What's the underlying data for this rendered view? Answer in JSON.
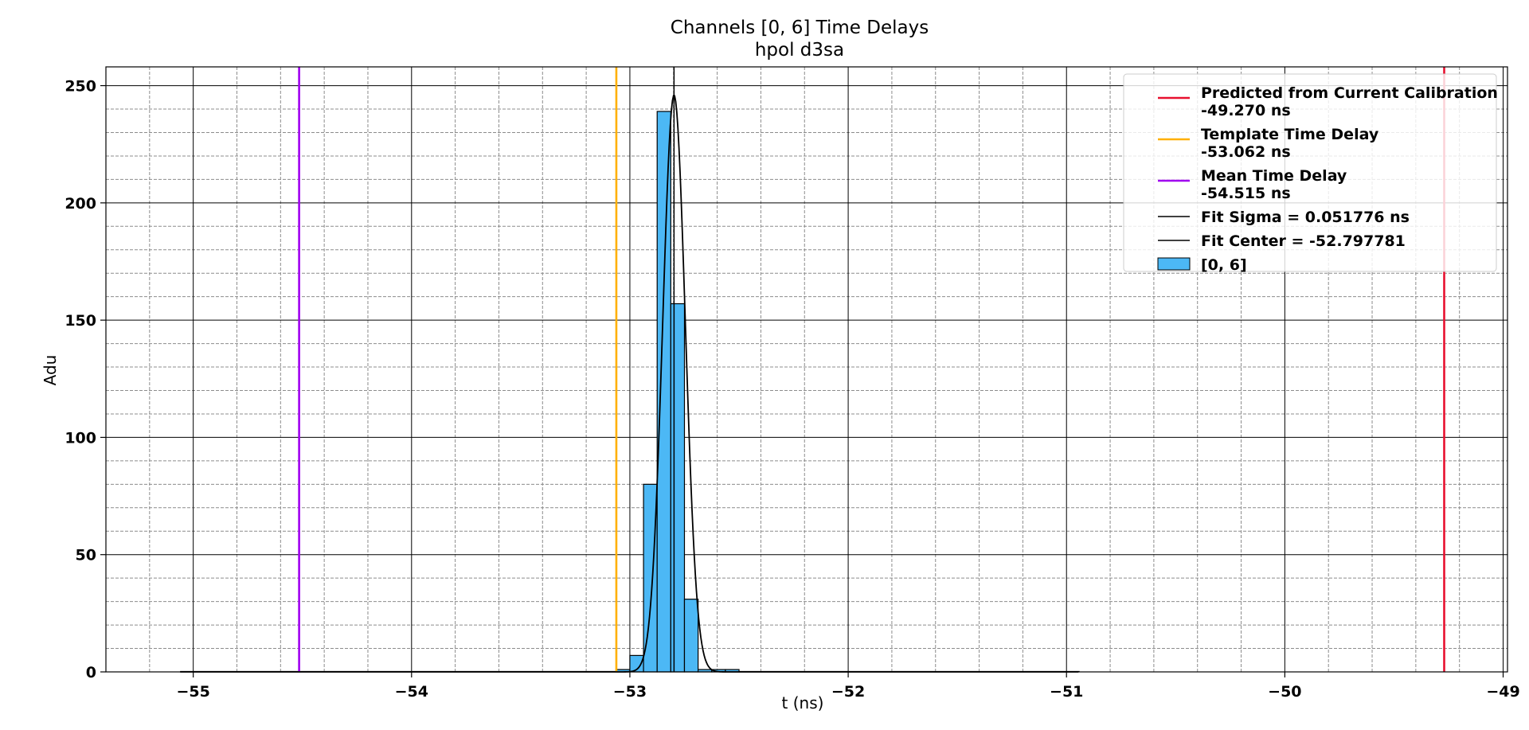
{
  "chart_data": {
    "type": "bar",
    "title": "Channels [0, 6] Time Delays",
    "subtitle": "hpol d3sa",
    "xlabel": "t (ns)",
    "ylabel": "Adu",
    "xlim": [
      -55.4,
      -48.98
    ],
    "ylim": [
      0,
      258
    ],
    "xticks": [
      -55,
      -54,
      -53,
      -52,
      -51,
      -50,
      -49
    ],
    "xtick_labels": [
      "−55",
      "−54",
      "−53",
      "−52",
      "−51",
      "−50",
      "−49"
    ],
    "yticks": [
      0,
      50,
      100,
      150,
      200,
      250
    ],
    "ytick_labels": [
      "0",
      "50",
      "100",
      "150",
      "200",
      "250"
    ],
    "grid": "major solid, minor dashed",
    "legend_position": "top-right",
    "histogram": {
      "name": "[0, 6]",
      "color": "#4cb8f5",
      "edgecolor": "#000000",
      "range": [
        -55.06,
        -50.94
      ],
      "bin_width": 0.0625,
      "bins": [
        {
          "x0": -53.0625,
          "x1": -53.0,
          "count": 1
        },
        {
          "x0": -53.0,
          "x1": -52.9375,
          "count": 7
        },
        {
          "x0": -52.9375,
          "x1": -52.875,
          "count": 80
        },
        {
          "x0": -52.875,
          "x1": -52.8125,
          "count": 239
        },
        {
          "x0": -52.8125,
          "x1": -52.75,
          "count": 157
        },
        {
          "x0": -52.75,
          "x1": -52.6875,
          "count": 31
        },
        {
          "x0": -52.6875,
          "x1": -52.625,
          "count": 1
        },
        {
          "x0": -52.625,
          "x1": -52.5625,
          "count": 1
        },
        {
          "x0": -52.5625,
          "x1": -52.5,
          "count": 1
        }
      ]
    },
    "fit": {
      "center": -52.797781,
      "sigma": 0.051776,
      "amplitude": 246,
      "color": "#000000"
    },
    "vertical_lines": [
      {
        "x": -49.27,
        "color": "#e8102f",
        "label": "Predicted from Current Calibration\n-49.270 ns"
      },
      {
        "x": -53.062,
        "color": "#ffb000",
        "label": "Template Time Delay\n-53.062 ns"
      },
      {
        "x": -54.515,
        "color": "#a000f0",
        "label": "Mean Time Delay\n-54.515 ns"
      },
      {
        "x": -52.797781,
        "color": "#000000",
        "label": "Fit Center = -52.797781"
      }
    ],
    "legend": [
      {
        "label": "Predicted from Current Calibration",
        "label2": "-49.270 ns",
        "color": "#e8102f",
        "kind": "line"
      },
      {
        "label": "Template Time Delay",
        "label2": "-53.062 ns",
        "color": "#ffb000",
        "kind": "line"
      },
      {
        "label": "Mean Time Delay",
        "label2": "-54.515 ns",
        "color": "#a000f0",
        "kind": "line"
      },
      {
        "label": "Fit Sigma = 0.051776 ns",
        "label2": "",
        "color": "#000000",
        "kind": "line"
      },
      {
        "label": "Fit Center = -52.797781",
        "label2": "",
        "color": "#000000",
        "kind": "line"
      },
      {
        "label": "[0, 6]",
        "label2": "",
        "color": "#4cb8f5",
        "kind": "patch"
      }
    ]
  }
}
